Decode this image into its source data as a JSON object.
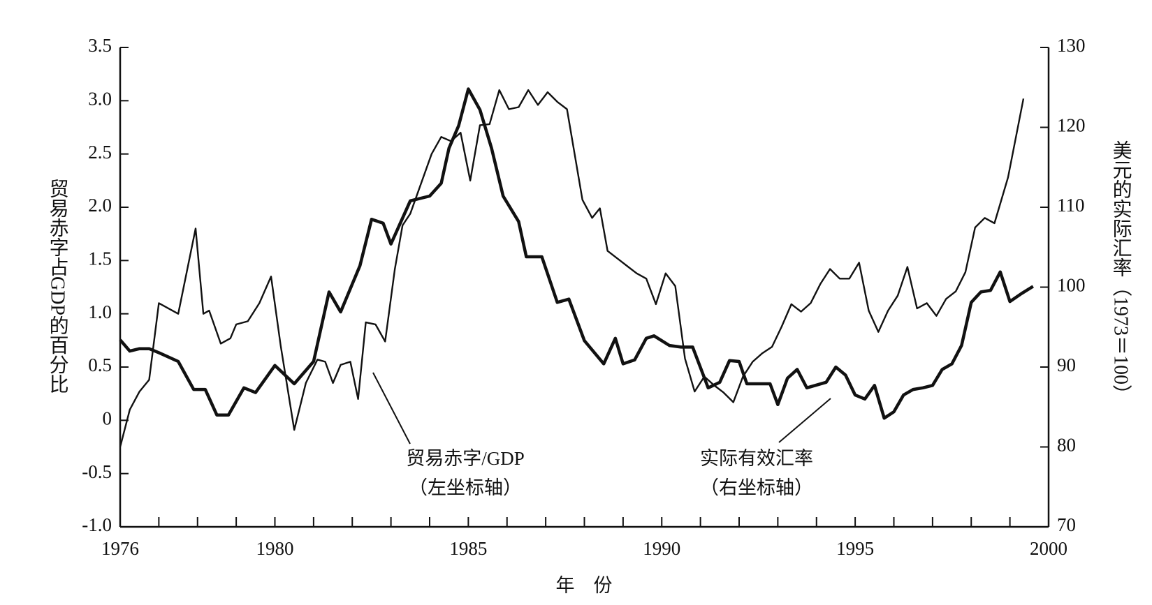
{
  "chart_data": {
    "type": "line",
    "xlabel": "年　份",
    "ylabel": "贸易赤字占GDP的百分比",
    "y2label": "美元的实际汇率（1973＝100）",
    "annotations": [
      "贸易赤字/GDP",
      "（左坐标轴）",
      "实际有效汇率",
      "（右坐标轴）"
    ],
    "xlim": [
      1976,
      2000
    ],
    "xticks": [
      1976,
      1980,
      1985,
      1990,
      1995,
      2000
    ],
    "xminor_ticks": [
      1977,
      1978,
      1979,
      1981,
      1982,
      1983,
      1984,
      1986,
      1987,
      1988,
      1989,
      1991,
      1992,
      1993,
      1994,
      1996,
      1997,
      1998,
      1999
    ],
    "ylim": [
      -1.0,
      3.5
    ],
    "yticks": [
      {
        "value": -1.0,
        "label": "-1.0"
      },
      -0.5,
      0,
      0.5,
      {
        "value": 1.0,
        "label": "1.0"
      },
      1.5,
      {
        "value": 2.0,
        "label": "2.0"
      },
      2.5,
      {
        "value": 3.0,
        "label": "3.0"
      },
      3.5
    ],
    "y2lim": [
      70,
      130
    ],
    "y2ticks": [
      70,
      80,
      90,
      100,
      110,
      120,
      130
    ],
    "series": [
      {
        "name": "贸易赤字/GDP",
        "color": "#111111",
        "axis": "y",
        "x": [
          1976.0,
          1976.25,
          1976.5,
          1976.75,
          1977.0,
          1977.5,
          1977.95,
          1978.15,
          1978.3,
          1978.6,
          1978.85,
          1979.0,
          1979.3,
          1979.6,
          1979.9,
          1980.15,
          1980.5,
          1980.8,
          1981.1,
          1981.3,
          1981.5,
          1981.7,
          1981.95,
          1982.15,
          1982.35,
          1982.6,
          1982.85,
          1983.1,
          1983.3,
          1983.5,
          1984.05,
          1984.3,
          1984.55,
          1984.8,
          1985.05,
          1985.3,
          1985.55,
          1985.8,
          1986.05,
          1986.3,
          1986.55,
          1986.8,
          1987.05,
          1987.3,
          1987.55,
          1987.95,
          1988.2,
          1988.4,
          1988.6,
          1988.85,
          1989.1,
          1989.35,
          1989.6,
          1989.85,
          1990.1,
          1990.35,
          1990.6,
          1990.85,
          1991.1,
          1991.35,
          1991.6,
          1991.85,
          1992.1,
          1992.35,
          1992.6,
          1992.85,
          1993.1,
          1993.35,
          1993.6,
          1993.85,
          1994.1,
          1994.35,
          1994.6,
          1994.85,
          1995.1,
          1995.35,
          1995.6,
          1995.85,
          1996.1,
          1996.35,
          1996.6,
          1996.85,
          1997.1,
          1997.35,
          1997.6,
          1997.85,
          1998.1,
          1998.35,
          1998.6,
          1998.95,
          1999.35
        ],
        "values": [
          -0.25,
          0.1,
          0.27,
          0.38,
          1.1,
          1.0,
          1.8,
          1.0,
          1.03,
          0.72,
          0.77,
          0.9,
          0.93,
          1.1,
          1.35,
          0.7,
          -0.09,
          0.35,
          0.57,
          0.55,
          0.35,
          0.52,
          0.55,
          0.2,
          0.92,
          0.9,
          0.74,
          1.42,
          1.83,
          1.94,
          2.5,
          2.66,
          2.62,
          2.7,
          2.25,
          2.77,
          2.78,
          3.1,
          2.92,
          2.94,
          3.1,
          2.96,
          3.08,
          2.99,
          2.92,
          2.07,
          1.9,
          1.99,
          1.59,
          1.52,
          1.45,
          1.38,
          1.33,
          1.09,
          1.38,
          1.26,
          0.58,
          0.27,
          0.41,
          0.33,
          0.26,
          0.17,
          0.41,
          0.55,
          0.63,
          0.69,
          0.88,
          1.09,
          1.02,
          1.1,
          1.28,
          1.42,
          1.33,
          1.33,
          1.48,
          1.03,
          0.83,
          1.03,
          1.17,
          1.44,
          1.05,
          1.1,
          0.98,
          1.14,
          1.21,
          1.39,
          1.81,
          1.9,
          1.85,
          2.28,
          3.02
        ]
      },
      {
        "name": "实际有效汇率",
        "color": "#111111",
        "axis": "y2",
        "x": [
          1976.0,
          1976.25,
          1976.5,
          1976.75,
          1977.0,
          1977.5,
          1977.9,
          1978.2,
          1978.5,
          1978.8,
          1979.2,
          1979.5,
          1980.0,
          1980.5,
          1981.0,
          1981.4,
          1981.7,
          1982.2,
          1982.5,
          1982.8,
          1983.0,
          1983.5,
          1984.0,
          1984.3,
          1984.5,
          1984.75,
          1985.0,
          1985.3,
          1985.6,
          1985.9,
          1986.3,
          1986.5,
          1986.9,
          1987.3,
          1987.6,
          1988.0,
          1988.5,
          1988.8,
          1989.0,
          1989.3,
          1989.6,
          1989.8,
          1990.2,
          1990.5,
          1990.8,
          1991.2,
          1991.5,
          1991.75,
          1992.0,
          1992.2,
          1992.5,
          1992.8,
          1993.0,
          1993.25,
          1993.5,
          1993.75,
          1994.25,
          1994.5,
          1994.75,
          1995.0,
          1995.25,
          1995.5,
          1995.75,
          1996.0,
          1996.25,
          1996.5,
          1996.75,
          1997.0,
          1997.25,
          1997.5,
          1997.75,
          1998.0,
          1998.25,
          1998.5,
          1998.75,
          1999.0,
          1999.3,
          1999.6
        ],
        "values": [
          93.4,
          92.0,
          92.3,
          92.3,
          91.8,
          90.7,
          87.2,
          87.2,
          84.0,
          84.0,
          87.4,
          86.8,
          90.2,
          87.9,
          90.7,
          99.4,
          96.9,
          102.7,
          108.5,
          108.0,
          105.4,
          110.8,
          111.4,
          113.0,
          117.4,
          120.2,
          124.8,
          122.2,
          117.4,
          111.4,
          108.2,
          103.8,
          103.8,
          98.1,
          98.5,
          93.3,
          90.4,
          93.6,
          90.4,
          90.9,
          93.6,
          93.9,
          92.7,
          92.5,
          92.5,
          87.4,
          88.1,
          90.8,
          90.7,
          87.9,
          87.9,
          87.9,
          85.3,
          88.6,
          89.7,
          87.4,
          88.1,
          90.0,
          89.0,
          86.5,
          86.0,
          87.7,
          83.6,
          84.4,
          86.5,
          87.2,
          87.4,
          87.7,
          89.7,
          90.4,
          92.7,
          98.1,
          99.4,
          99.6,
          101.9,
          98.2,
          99.2,
          100.1
        ]
      }
    ]
  }
}
